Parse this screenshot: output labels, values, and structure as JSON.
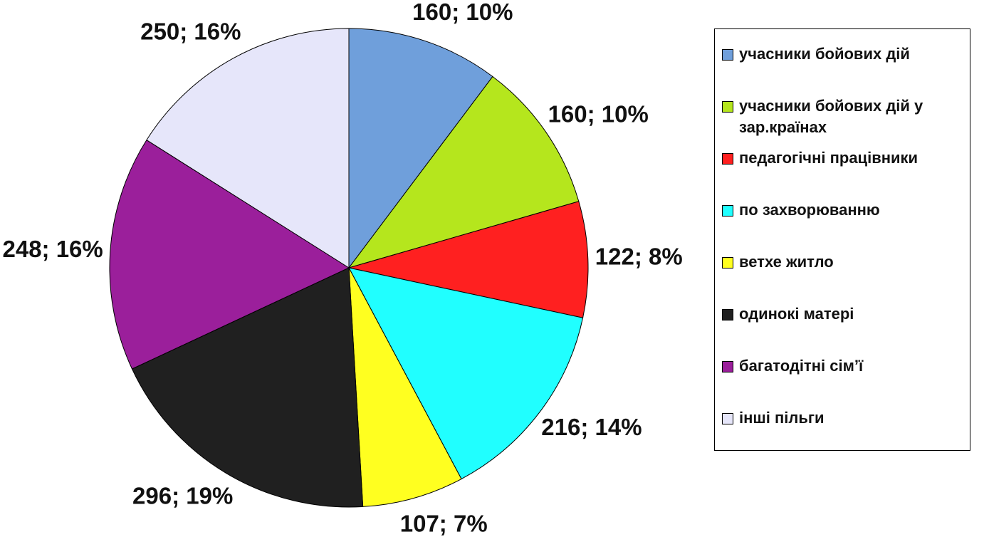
{
  "chart_data": {
    "type": "pie",
    "categories": [
      "учасники бойових дій",
      "учасники бойових дій у зар.країнах",
      "педагогічні працівники",
      "по захворюванню",
      "ветхе житло",
      "одинокі матері",
      "багатодітні сім’ї",
      "інші пільги"
    ],
    "values": [
      160,
      160,
      122,
      216,
      107,
      296,
      248,
      250
    ],
    "value_labels": [
      "160; 10%",
      "160; 10%",
      "122; 8%",
      "216; 14%",
      "107; 7%",
      "296; 19%",
      "248; 16%",
      "250; 16%"
    ],
    "colors": [
      "#6f9fdb",
      "#b5e61d",
      "#ff2020",
      "#20ffff",
      "#ffff20",
      "#202020",
      "#9b1f9b",
      "#e6e6fa"
    ],
    "legend": "right"
  }
}
